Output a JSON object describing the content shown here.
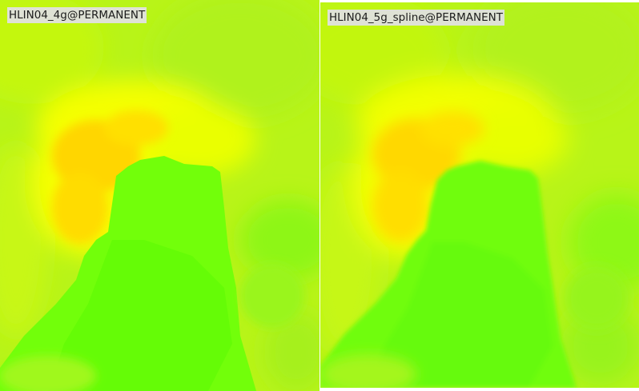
{
  "maps": [
    {
      "label": "HLIN04_4g@PERMANENT",
      "palette": {
        "low": "#66ff00",
        "mid": "#ccff00",
        "high": "#ffd200",
        "peak": "#ffff00"
      }
    },
    {
      "label": "HLIN04_5g_spline@PERMANENT",
      "palette": {
        "low": "#66ff00",
        "mid": "#ccff00",
        "high": "#ffd200",
        "peak": "#ffff00"
      }
    }
  ]
}
